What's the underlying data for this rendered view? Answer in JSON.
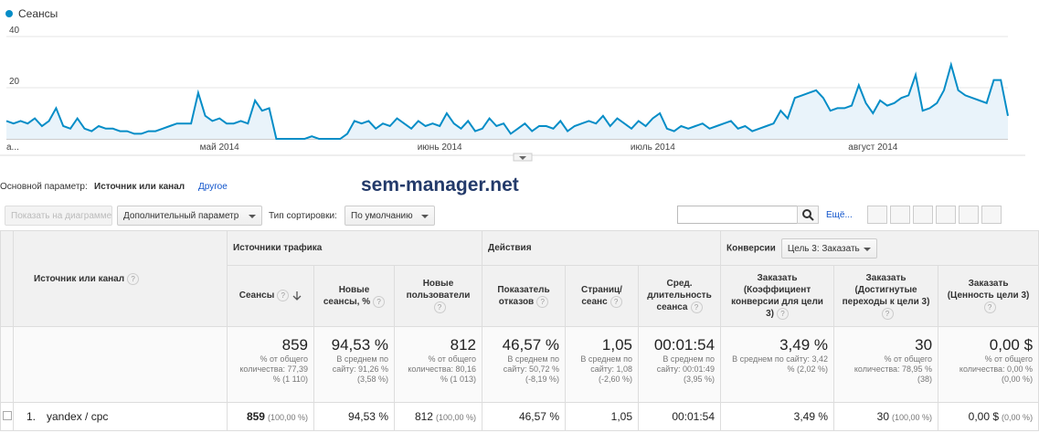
{
  "chart_data": {
    "type": "line",
    "categories": [
      "а...",
      null,
      null,
      null,
      null,
      null,
      null,
      null,
      null,
      null,
      null,
      null,
      null,
      null,
      null,
      null,
      null,
      null,
      null,
      null,
      null,
      null,
      null,
      null,
      null,
      null,
      null,
      null,
      null,
      null,
      "май 2014",
      null,
      null,
      null,
      null,
      null,
      null,
      null,
      null,
      null,
      null,
      null,
      null,
      null,
      null,
      null,
      null,
      null,
      null,
      null,
      null,
      null,
      null,
      null,
      null,
      null,
      null,
      null,
      null,
      null,
      null,
      "июнь 2014",
      null,
      null,
      null,
      null,
      null,
      null,
      null,
      null,
      null,
      null,
      null,
      null,
      null,
      null,
      null,
      null,
      null,
      null,
      null,
      null,
      null,
      null,
      null,
      null,
      null,
      null,
      null,
      null,
      null,
      "июль 2014",
      null,
      null,
      null,
      null,
      null,
      null,
      null,
      null,
      null,
      null,
      null,
      null,
      null,
      null,
      null,
      null,
      null,
      null,
      null,
      null,
      null,
      null,
      null,
      null,
      null,
      null,
      null,
      null,
      null,
      null,
      "август 2014",
      null,
      null,
      null,
      null,
      null,
      null,
      null,
      null,
      null,
      null,
      null,
      null,
      null,
      null,
      null,
      null,
      null,
      null,
      null
    ],
    "series": [
      {
        "name": "Сеансы",
        "color": "#058dc7",
        "values": [
          7,
          6,
          7,
          6,
          8,
          5,
          7,
          12,
          5,
          4,
          8,
          4,
          3,
          5,
          4,
          4,
          3,
          3,
          2,
          2,
          3,
          3,
          4,
          5,
          6,
          6,
          6,
          18,
          9,
          7,
          8,
          6,
          6,
          7,
          6,
          15,
          11,
          12,
          0,
          0,
          0,
          0,
          0,
          1,
          0,
          0,
          0,
          0,
          2,
          7,
          6,
          7,
          4,
          6,
          5,
          8,
          6,
          4,
          7,
          5,
          6,
          5,
          10,
          6,
          4,
          7,
          3,
          4,
          8,
          5,
          6,
          2,
          4,
          6,
          3,
          5,
          5,
          4,
          7,
          3,
          5,
          6,
          7,
          6,
          9,
          5,
          8,
          6,
          4,
          7,
          5,
          8,
          10,
          4,
          3,
          5,
          4,
          5,
          6,
          4,
          5,
          6,
          7,
          4,
          5,
          3,
          4,
          5,
          6,
          11,
          8,
          16,
          17,
          18,
          19,
          16,
          11,
          12,
          12,
          13,
          21,
          14,
          10,
          15,
          13,
          14,
          16,
          17,
          25,
          11,
          12,
          14,
          19,
          29,
          19,
          17,
          16,
          15,
          14,
          23,
          23,
          9
        ]
      }
    ],
    "ylim": [
      0,
      40
    ],
    "yticks": [
      20,
      40
    ],
    "grid": true,
    "legend": "top-left"
  },
  "toolbar": {
    "primary_label": "Основной параметр:",
    "primary_value": "Источник или канал",
    "other": "Другое",
    "watermark": "sem-manager.net",
    "show_button": "Показать на диаграмме",
    "secondary": "Дополнительный параметр",
    "sort_label": "Тип сортировки:",
    "sort_value": "По умолчанию",
    "more": "Ещё..."
  },
  "help_icon": "?",
  "table": {
    "dimension_header": "Источник или канал",
    "groups": [
      {
        "label": "Источники трафика"
      },
      {
        "label": "Действия"
      },
      {
        "label": "Конверсии",
        "selector": "Цель 3: Заказать"
      }
    ],
    "columns": [
      "Сеансы",
      "Новые сеансы, %",
      "Новые пользователи",
      "Показатель отказов",
      "Страниц/ сеанс",
      "Сред. длительность сеанса",
      "Заказать (Коэффициент конверсии для цели 3)",
      "Заказать (Достигнутые переходы к цели 3)",
      "Заказать (Ценность цели 3)"
    ],
    "totals": [
      {
        "value": "859",
        "note": "% от общего количества: 77,39 % (1 110)"
      },
      {
        "value": "94,53 %",
        "note": "В среднем по сайту: 91,26 % (3,58 %)"
      },
      {
        "value": "812",
        "note": "% от общего количества: 80,16 % (1 013)"
      },
      {
        "value": "46,57 %",
        "note": "В среднем по сайту: 50,72 % (-8,19 %)"
      },
      {
        "value": "1,05",
        "note": "В среднем по сайту: 1,08 (-2,60 %)"
      },
      {
        "value": "00:01:54",
        "note": "В среднем по сайту: 00:01:49 (3,95 %)"
      },
      {
        "value": "3,49 %",
        "note": "В среднем по сайту: 3,42 % (2,02 %)"
      },
      {
        "value": "30",
        "note": "% от общего количества: 78,95 % (38)"
      },
      {
        "value": "0,00 $",
        "note": "% от общего количества: 0,00 % (0,00 %)"
      }
    ],
    "rows": [
      {
        "index": "1.",
        "name": "yandex / cpc",
        "cells": [
          {
            "value": "859",
            "share": "(100,00 %)"
          },
          {
            "value": "94,53 %"
          },
          {
            "value": "812",
            "share": "(100,00 %)"
          },
          {
            "value": "46,57 %"
          },
          {
            "value": "1,05"
          },
          {
            "value": "00:01:54"
          },
          {
            "value": "3,49 %"
          },
          {
            "value": "30",
            "share": "(100,00 %)"
          },
          {
            "value": "0,00 $",
            "share": "(0,00 %)"
          }
        ]
      }
    ]
  }
}
